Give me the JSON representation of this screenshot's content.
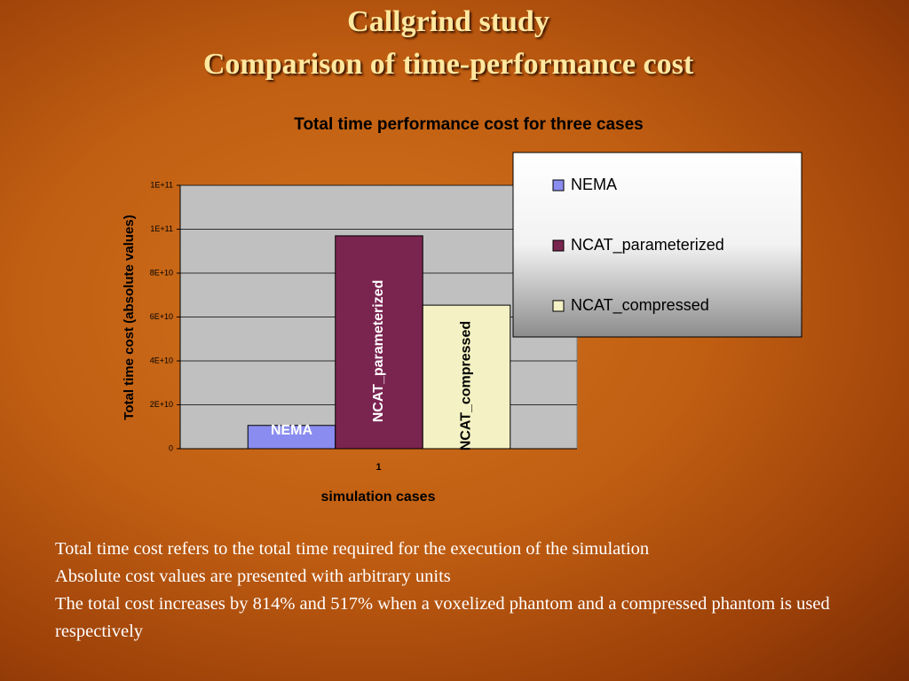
{
  "slide": {
    "title": [
      "Callgrind study",
      "Comparison of time-performance cost"
    ],
    "notes": [
      "Total time cost refers to the total time required for the execution of the simulation",
      "Absolute cost values are presented with arbitrary units",
      "The total cost increases by 814% and 517% when a voxelized phantom and a compressed phantom is used respectively"
    ]
  },
  "chart_data": {
    "type": "bar",
    "title": "Total time performance cost for three cases",
    "x_label": "simulation cases",
    "y_label": "Total time cost (absolute values)",
    "categories": [
      "1"
    ],
    "series": [
      {
        "name": "NEMA",
        "color": "#8a8cf0",
        "values": [
          10600000000
        ]
      },
      {
        "name": "NCAT_parameterized",
        "color": "#7a2450",
        "values": [
          97000000000
        ]
      },
      {
        "name": "NCAT_compressed",
        "color": "#f4f2c4",
        "values": [
          65400000000
        ]
      }
    ],
    "ylim": [
      0,
      120000000000
    ],
    "yticks": [
      0,
      {
        "value": 20000000000,
        "label": "2E+10"
      },
      {
        "value": 40000000000,
        "label": "4E+10"
      },
      {
        "value": 60000000000,
        "label": "6E+10"
      },
      {
        "value": 80000000000,
        "label": "8E+10"
      },
      {
        "value": 100000000000,
        "label": "1E+11"
      },
      {
        "value": 120000000000,
        "label": "1E+11"
      }
    ],
    "grid": true,
    "legend": "top-right"
  }
}
